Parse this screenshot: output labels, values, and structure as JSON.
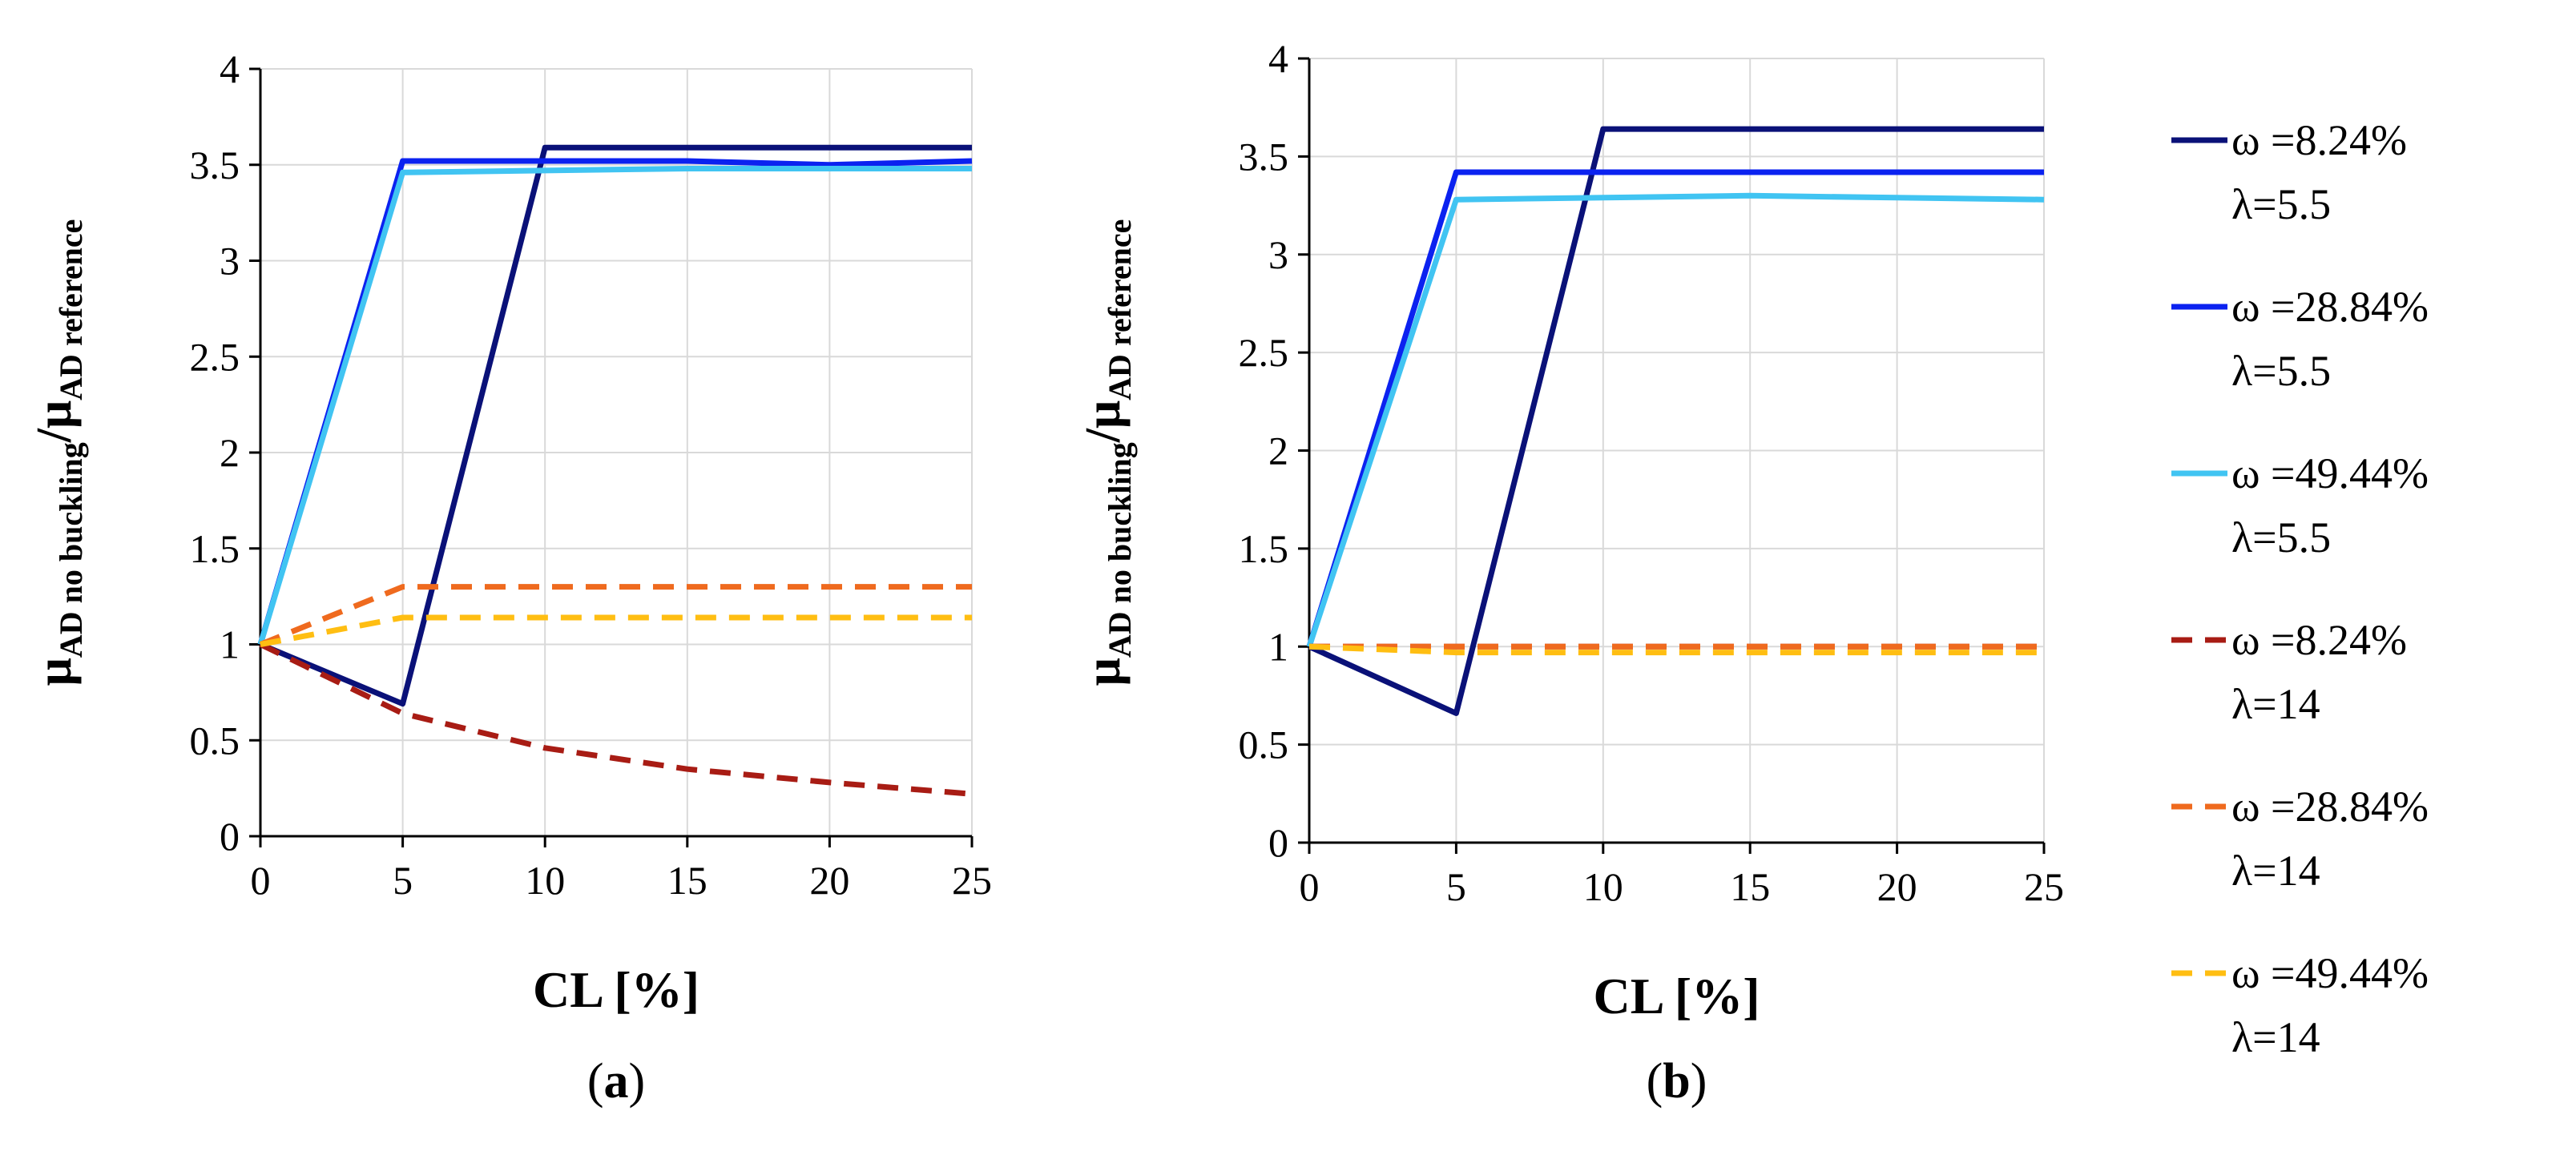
{
  "legend": [
    {
      "label_line1": "ω =8.24%",
      "label_line2": "λ=5.5",
      "color": "#0a1178",
      "dash": false
    },
    {
      "label_line1": "ω =28.84%",
      "label_line2": "λ=5.5",
      "color": "#0b22f0",
      "dash": false
    },
    {
      "label_line1": "ω =49.44%",
      "label_line2": "λ=5.5",
      "color": "#41c4f2",
      "dash": false
    },
    {
      "label_line1": "ω =8.24%",
      "label_line2": "λ=14",
      "color": "#a81c14",
      "dash": true
    },
    {
      "label_line1": "ω =28.84%",
      "label_line2": "λ=14",
      "color": "#ef6a1e",
      "dash": true
    },
    {
      "label_line1": "ω =49.44%",
      "label_line2": "λ=14",
      "color": "#ffbe12",
      "dash": true
    }
  ],
  "chart_data": [
    {
      "type": "line",
      "panel_label": "(a)",
      "panel_letter": "a",
      "xlabel": "CL [%]",
      "ylabel_main": "μ",
      "ylabel_sub1": "AD no buckling",
      "ylabel_sep": "/μ",
      "ylabel_sub2": "AD reference",
      "xlim": [
        0,
        25
      ],
      "ylim": [
        0,
        4
      ],
      "xticks": [
        0,
        5,
        10,
        15,
        20,
        25
      ],
      "yticks": [
        0,
        0.5,
        1,
        1.5,
        2,
        2.5,
        3,
        3.5,
        4
      ],
      "ytick_labels": [
        "0",
        "0.5",
        "1",
        "1.5",
        "2",
        "2.5",
        "3",
        "3.5",
        "4"
      ],
      "grid": true,
      "series": [
        {
          "name": "ω =8.24% λ=5.5",
          "x": [
            0,
            5,
            10,
            15,
            20,
            25
          ],
          "values": [
            1,
            0.69,
            3.59,
            3.59,
            3.59,
            3.59
          ]
        },
        {
          "name": "ω =28.84% λ=5.5",
          "x": [
            0,
            5,
            10,
            15,
            20,
            25
          ],
          "values": [
            1,
            3.52,
            3.52,
            3.52,
            3.5,
            3.52
          ]
        },
        {
          "name": "ω =49.44% λ=5.5",
          "x": [
            0,
            5,
            10,
            15,
            20,
            25
          ],
          "values": [
            1,
            3.46,
            3.47,
            3.48,
            3.48,
            3.48
          ]
        },
        {
          "name": "ω =8.24% λ=14",
          "x": [
            0,
            5,
            10,
            15,
            20,
            25
          ],
          "values": [
            1,
            0.64,
            0.46,
            0.35,
            0.28,
            0.22
          ]
        },
        {
          "name": "ω =28.84% λ=14",
          "x": [
            0,
            5,
            10,
            15,
            20,
            25
          ],
          "values": [
            1,
            1.3,
            1.3,
            1.3,
            1.3,
            1.3
          ]
        },
        {
          "name": "ω =49.44% λ=14",
          "x": [
            0,
            5,
            10,
            15,
            20,
            25
          ],
          "values": [
            1,
            1.14,
            1.14,
            1.14,
            1.14,
            1.14
          ]
        }
      ]
    },
    {
      "type": "line",
      "panel_label": "(b)",
      "panel_letter": "b",
      "xlabel": "CL [%]",
      "ylabel_main": "μ",
      "ylabel_sub1": "AD no buckling",
      "ylabel_sep": "/μ",
      "ylabel_sub2": "AD reference",
      "xlim": [
        0,
        25
      ],
      "ylim": [
        0,
        4
      ],
      "xticks": [
        0,
        5,
        10,
        15,
        20,
        25
      ],
      "yticks": [
        0,
        0.5,
        1,
        1.5,
        2,
        2.5,
        3,
        3.5,
        4
      ],
      "ytick_labels": [
        "0",
        "0.5",
        "1",
        "1.5",
        "2",
        "2.5",
        "3",
        "3.5",
        "4"
      ],
      "grid": true,
      "series": [
        {
          "name": "ω =8.24% λ=5.5",
          "x": [
            0,
            5,
            10,
            15,
            20,
            25
          ],
          "values": [
            1,
            0.66,
            3.64,
            3.64,
            3.64,
            3.64
          ]
        },
        {
          "name": "ω =28.84% λ=5.5",
          "x": [
            0,
            5,
            10,
            15,
            20,
            25
          ],
          "values": [
            1,
            3.42,
            3.42,
            3.42,
            3.42,
            3.42
          ]
        },
        {
          "name": "ω =49.44% λ=5.5",
          "x": [
            0,
            5,
            10,
            15,
            20,
            25
          ],
          "values": [
            1,
            3.28,
            3.29,
            3.3,
            3.29,
            3.28
          ]
        },
        {
          "name": "ω =8.24% λ=14",
          "x": [
            0,
            5,
            10,
            15,
            20,
            25
          ],
          "values": [
            1,
            1,
            1,
            1,
            1,
            1
          ]
        },
        {
          "name": "ω =28.84% λ=14",
          "x": [
            0,
            5,
            10,
            15,
            20,
            25
          ],
          "values": [
            1,
            1,
            1,
            1,
            1,
            1
          ]
        },
        {
          "name": "ω =49.44% λ=14",
          "x": [
            0,
            5,
            10,
            15,
            20,
            25
          ],
          "values": [
            1,
            0.97,
            0.97,
            0.97,
            0.97,
            0.97
          ]
        }
      ]
    }
  ]
}
